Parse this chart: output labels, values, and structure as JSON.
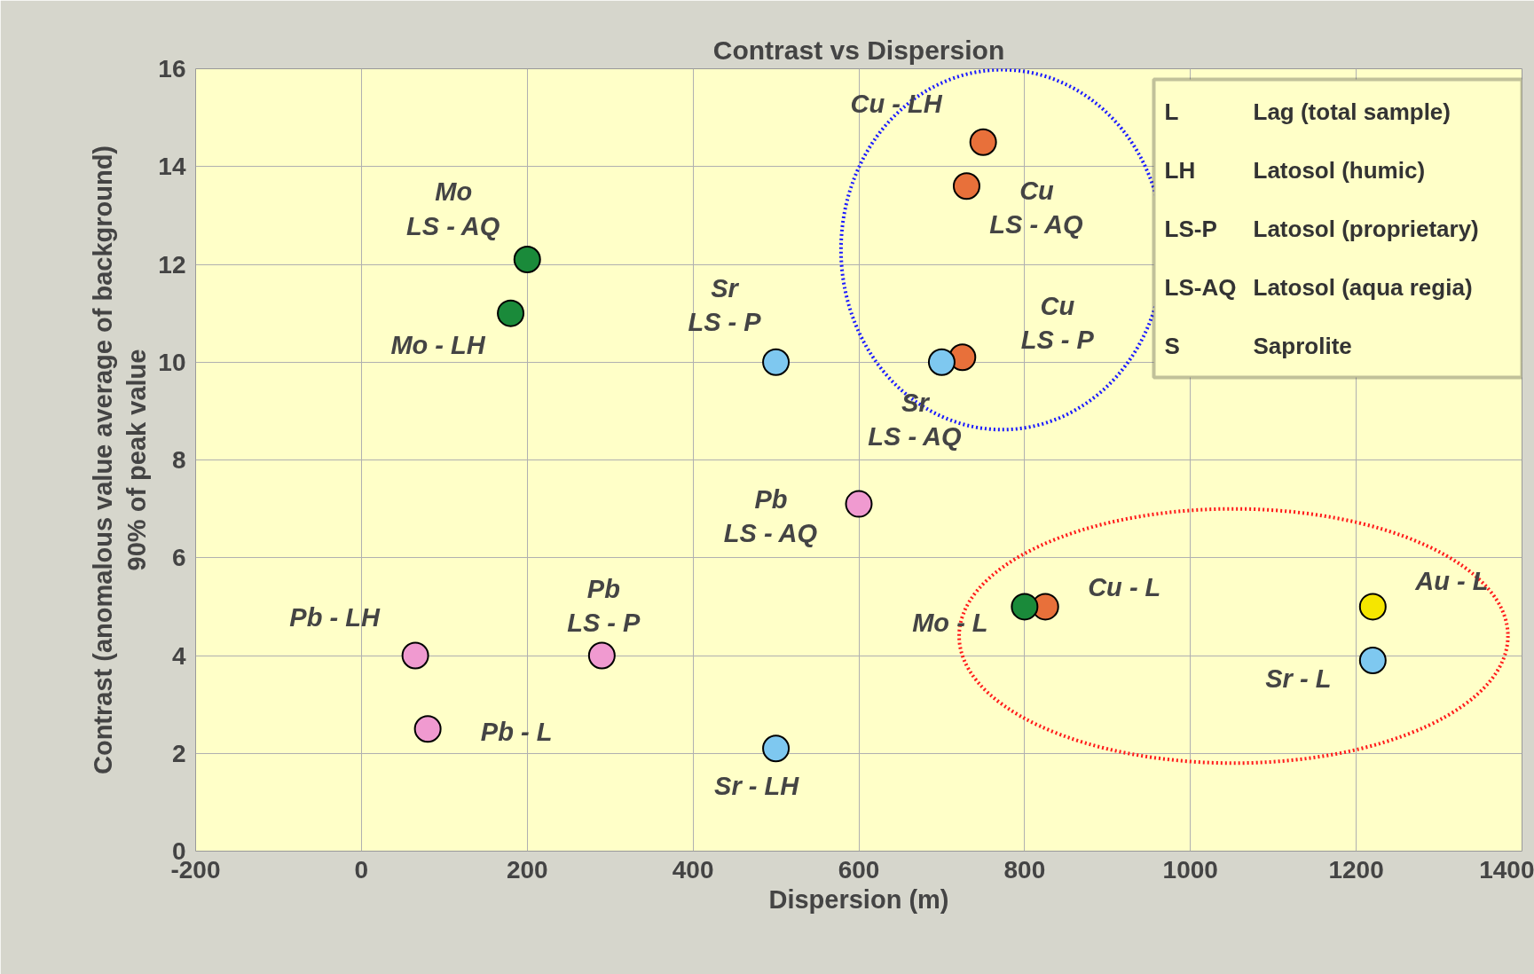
{
  "chart_data": {
    "type": "scatter",
    "title": "Contrast vs Dispersion",
    "xlabel": "Dispersion (m)",
    "ylabel": "Contrast (anomalous value average of background)\n90% of peak value",
    "xlim": [
      -200,
      1400
    ],
    "xticks": [
      -200,
      0,
      200,
      400,
      600,
      800,
      1000,
      1200,
      1400
    ],
    "ylim": [
      0,
      16
    ],
    "yticks": [
      0,
      2,
      4,
      6,
      8,
      10,
      12,
      14,
      16
    ],
    "grid": true,
    "marker": "circle",
    "series": [
      {
        "color": "#e8703a",
        "x": [
          750,
          730,
          725,
          825
        ],
        "values": [
          14.5,
          13.6,
          10.1,
          5.0
        ]
      },
      {
        "color": "#1a8a3a",
        "x": [
          200,
          180,
          800
        ],
        "values": [
          12.1,
          11.0,
          5.0
        ]
      },
      {
        "color": "#7ec8f0",
        "x": [
          500,
          700,
          1220,
          500
        ],
        "values": [
          10.0,
          10.0,
          3.9,
          2.1
        ]
      },
      {
        "color": "#f09ad0",
        "x": [
          600,
          65,
          290,
          80
        ],
        "values": [
          7.1,
          4.0,
          4.0,
          2.5
        ]
      },
      {
        "color": "#f5e600",
        "x": [
          1220
        ],
        "values": [
          5.0
        ]
      }
    ],
    "annotations": [
      {
        "text": "Cu - LH",
        "x": 750,
        "y": 14.5
      },
      {
        "text": "Cu\nLS - AQ",
        "x": 730,
        "y": 13.6
      },
      {
        "text": "Mo\nLS - AQ",
        "x": 200,
        "y": 12.1
      },
      {
        "text": "Mo - LH",
        "x": 180,
        "y": 11.0
      },
      {
        "text": "Sr\nLS - P",
        "x": 500,
        "y": 10.0
      },
      {
        "text": "Cu\nLS - P",
        "x": 725,
        "y": 10.1
      },
      {
        "text": "Sr\nLS - AQ",
        "x": 700,
        "y": 10.0
      },
      {
        "text": "Pb\nLS - AQ",
        "x": 600,
        "y": 7.1
      },
      {
        "text": "Pb - LH",
        "x": 65,
        "y": 4.0
      },
      {
        "text": "Pb\nLS - P",
        "x": 290,
        "y": 4.0
      },
      {
        "text": "Pb - L",
        "x": 80,
        "y": 2.5
      },
      {
        "text": "Sr - LH",
        "x": 500,
        "y": 2.1
      },
      {
        "text": "Mo - L",
        "x": 800,
        "y": 5.0
      },
      {
        "text": "Cu - L",
        "x": 825,
        "y": 5.0
      },
      {
        "text": "Au - L",
        "x": 1220,
        "y": 5.0
      },
      {
        "text": "Sr - L",
        "x": 1220,
        "y": 3.9
      },
      "L Lag (total sample)",
      "LH Latosol (humic)",
      "LS-P Latosol (proprietary)",
      "LS-AQ Latosol (aqua regia)",
      "S Saprolite"
    ]
  }
}
